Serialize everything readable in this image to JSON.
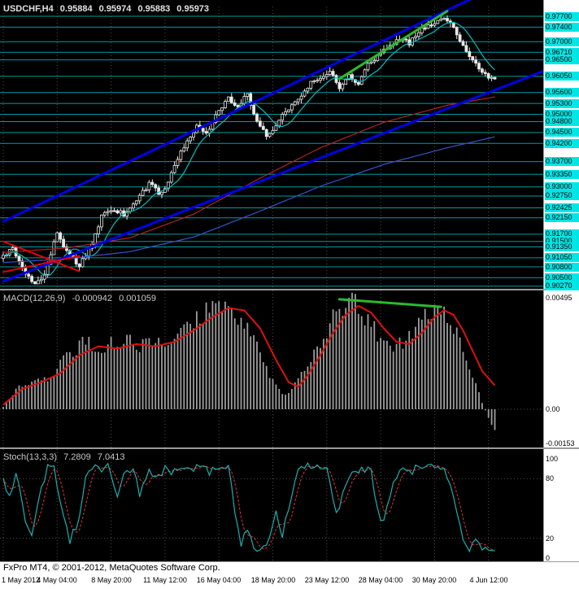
{
  "window": {
    "symbol_period": "USDCHF,H4"
  },
  "colors": {
    "background": "#000000",
    "scale_bg": "#ffffff",
    "level_line": "#009c9c",
    "level_label_bg": "#00e6e6",
    "grid": "#4d4d4d",
    "candle": "#e8e8e8",
    "separator": "#9a9a9a",
    "text_on_black": "#c8c8c8",
    "histogram": "#9e9e9e",
    "macd_signal": "#dd1111",
    "trend_blue": "#0000e6",
    "trend_green": "#2eb82e",
    "trend_red": "#e60000"
  },
  "footer": {
    "copyright": "FxPro MT4, © 2001-2012, MetaQuotes Software Corp."
  },
  "chart_data": [
    {
      "panel": "main",
      "type": "candlestick",
      "title": "USDCHF,H4",
      "ohlc_display": {
        "open": "0.95884",
        "high": "0.95974",
        "low": "0.95883",
        "close": "0.95973"
      },
      "bars_total": 156,
      "y_range": [
        0.9024,
        0.9797
      ],
      "grid": "dotted-vertical",
      "levels": [
        0.977,
        0.974,
        0.97,
        0.9671,
        0.965,
        0.9605,
        0.956,
        0.953,
        0.95,
        0.948,
        0.945,
        0.942,
        0.937,
        0.9335,
        0.93,
        0.9275,
        0.92425,
        0.9215,
        0.917,
        0.915,
        0.9135,
        0.9105,
        0.908,
        0.905,
        0.9027
      ],
      "x_tick_labels": [
        "1 May 2012",
        "4 May 04:00",
        "8 May 20:00",
        "11 May 12:00",
        "16 May 04:00",
        "18 May 20:00",
        "23 May 12:00",
        "28 May 04:00",
        "30 May 20:00",
        "4 Jun 12:00"
      ],
      "x_tick_bars": [
        0,
        17,
        34,
        51,
        68,
        85,
        102,
        119,
        136,
        153
      ],
      "close_keypoints": [
        [
          0,
          0.9108
        ],
        [
          3,
          0.9135
        ],
        [
          6,
          0.9075
        ],
        [
          10,
          0.9035
        ],
        [
          13,
          0.906
        ],
        [
          17,
          0.9172
        ],
        [
          20,
          0.912
        ],
        [
          24,
          0.9085
        ],
        [
          28,
          0.914
        ],
        [
          31,
          0.922
        ],
        [
          34,
          0.924
        ],
        [
          38,
          0.9225
        ],
        [
          42,
          0.926
        ],
        [
          46,
          0.931
        ],
        [
          49,
          0.9285
        ],
        [
          51,
          0.9295
        ],
        [
          55,
          0.938
        ],
        [
          58,
          0.943
        ],
        [
          61,
          0.9465
        ],
        [
          64,
          0.9445
        ],
        [
          67,
          0.9495
        ],
        [
          68,
          0.9505
        ],
        [
          71,
          0.9545
        ],
        [
          74,
          0.952
        ],
        [
          77,
          0.9555
        ],
        [
          80,
          0.948
        ],
        [
          83,
          0.944
        ],
        [
          85,
          0.9455
        ],
        [
          88,
          0.95
        ],
        [
          91,
          0.9525
        ],
        [
          94,
          0.955
        ],
        [
          97,
          0.9585
        ],
        [
          100,
          0.9595
        ],
        [
          103,
          0.9615
        ],
        [
          106,
          0.9575
        ],
        [
          109,
          0.9605
        ],
        [
          112,
          0.958
        ],
        [
          115,
          0.9635
        ],
        [
          119,
          0.9665
        ],
        [
          122,
          0.969
        ],
        [
          125,
          0.971
        ],
        [
          128,
          0.9695
        ],
        [
          131,
          0.9725
        ],
        [
          134,
          0.9745
        ],
        [
          137,
          0.976
        ],
        [
          139,
          0.977
        ],
        [
          141,
          0.975
        ],
        [
          143,
          0.972
        ],
        [
          145,
          0.969
        ],
        [
          147,
          0.9655
        ],
        [
          149,
          0.964
        ],
        [
          151,
          0.9615
        ],
        [
          153,
          0.9598
        ],
        [
          155,
          0.9597
        ]
      ],
      "moving_averages": [
        {
          "name": "fast",
          "color": "#00bfbf",
          "type": "sma",
          "window": 9
        },
        {
          "name": "medium",
          "color": "#b22222",
          "keypoints": [
            [
              0,
              0.912
            ],
            [
              20,
              0.9132
            ],
            [
              40,
              0.916
            ],
            [
              60,
              0.9225
            ],
            [
              80,
              0.932
            ],
            [
              100,
              0.9408
            ],
            [
              120,
              0.9478
            ],
            [
              140,
              0.9525
            ],
            [
              155,
              0.9548
            ]
          ]
        },
        {
          "name": "slow",
          "color": "#3355cc",
          "keypoints": [
            [
              0,
              0.9092
            ],
            [
              20,
              0.9102
            ],
            [
              40,
              0.9122
            ],
            [
              60,
              0.9162
            ],
            [
              80,
              0.923
            ],
            [
              100,
              0.9302
            ],
            [
              120,
              0.9362
            ],
            [
              140,
              0.9408
            ],
            [
              155,
              0.9438
            ]
          ]
        }
      ],
      "trendlines": [
        {
          "name": "channel-upper",
          "color": "#0000e6",
          "width": 3,
          "from": [
            0,
            0.9205
          ],
          "to": [
            148,
            0.982
          ]
        },
        {
          "name": "channel-lower",
          "color": "#0000e6",
          "width": 3,
          "from": [
            0,
            0.904
          ],
          "to": [
            170,
            0.9618
          ]
        },
        {
          "name": "acceleration-line",
          "color": "#2eb82e",
          "width": 3,
          "from": [
            106,
            0.9598
          ],
          "to": [
            140,
            0.9784
          ]
        },
        {
          "name": "wedge-a",
          "color": "#e60000",
          "width": 2,
          "from": [
            0,
            0.915
          ],
          "to": [
            24,
            0.9068
          ]
        },
        {
          "name": "wedge-b",
          "color": "#e60000",
          "width": 2,
          "from": [
            0,
            0.9066
          ],
          "to": [
            24,
            0.911
          ]
        }
      ]
    },
    {
      "panel": "macd",
      "type": "histogram+line",
      "label": "MACD(12,26,9)",
      "value_main": "-0.000942",
      "value_signal": "0.001059",
      "y_range": [
        -0.0017,
        0.00525
      ],
      "y_ticks": [
        {
          "label": "0.00495",
          "value": 0.00495
        },
        {
          "label": "0.00",
          "value": 0
        },
        {
          "label": "-0.00153",
          "value": -0.00153
        }
      ],
      "histogram_keypoints": [
        [
          0,
          0.0001
        ],
        [
          5,
          0.001
        ],
        [
          10,
          0.0013
        ],
        [
          15,
          0.0014
        ],
        [
          20,
          0.0024
        ],
        [
          26,
          0.003
        ],
        [
          32,
          0.0028
        ],
        [
          38,
          0.0031
        ],
        [
          44,
          0.0028
        ],
        [
          50,
          0.0029
        ],
        [
          56,
          0.0034
        ],
        [
          62,
          0.0042
        ],
        [
          67,
          0.0048
        ],
        [
          71,
          0.0047
        ],
        [
          75,
          0.004
        ],
        [
          80,
          0.0028
        ],
        [
          85,
          0.0012
        ],
        [
          89,
          0.0006
        ],
        [
          93,
          0.0013
        ],
        [
          97,
          0.0022
        ],
        [
          101,
          0.0032
        ],
        [
          105,
          0.0043
        ],
        [
          108,
          0.0049
        ],
        [
          111,
          0.0047
        ],
        [
          115,
          0.0039
        ],
        [
          119,
          0.0031
        ],
        [
          123,
          0.0027
        ],
        [
          127,
          0.003
        ],
        [
          131,
          0.0038
        ],
        [
          134,
          0.0044
        ],
        [
          137,
          0.0048
        ],
        [
          140,
          0.0043
        ],
        [
          143,
          0.0034
        ],
        [
          146,
          0.0023
        ],
        [
          149,
          0.0011
        ],
        [
          151,
          0.0003
        ],
        [
          153,
          -0.0004
        ],
        [
          155,
          -0.00094
        ]
      ],
      "signal_keypoints": [
        [
          0,
          0.0002
        ],
        [
          6,
          0.0009
        ],
        [
          12,
          0.0012
        ],
        [
          18,
          0.0016
        ],
        [
          24,
          0.0024
        ],
        [
          30,
          0.0028
        ],
        [
          36,
          0.0027
        ],
        [
          42,
          0.0029
        ],
        [
          48,
          0.0028
        ],
        [
          54,
          0.003
        ],
        [
          60,
          0.0035
        ],
        [
          66,
          0.0041
        ],
        [
          71,
          0.0045
        ],
        [
          76,
          0.0044
        ],
        [
          81,
          0.0036
        ],
        [
          86,
          0.0022
        ],
        [
          90,
          0.0012
        ],
        [
          93,
          0.001
        ],
        [
          96,
          0.0015
        ],
        [
          100,
          0.0024
        ],
        [
          104,
          0.0034
        ],
        [
          108,
          0.0042
        ],
        [
          112,
          0.0046
        ],
        [
          116,
          0.0043
        ],
        [
          120,
          0.0036
        ],
        [
          124,
          0.003
        ],
        [
          128,
          0.0029
        ],
        [
          132,
          0.0034
        ],
        [
          136,
          0.0041
        ],
        [
          139,
          0.0044
        ],
        [
          142,
          0.0042
        ],
        [
          145,
          0.0035
        ],
        [
          148,
          0.0026
        ],
        [
          151,
          0.0017
        ],
        [
          155,
          0.00106
        ]
      ],
      "trendline": {
        "name": "divergence-line",
        "color": "#2eb82e",
        "width": 3,
        "from": [
          106,
          0.00489
        ],
        "to": [
          138,
          0.00456
        ]
      }
    },
    {
      "panel": "stochastic",
      "type": "line",
      "label": "Stoch(13,3,3)",
      "value_main": "7.2809",
      "value_signal": "7.0413",
      "y_range": [
        0,
        100
      ],
      "level_lines": [
        80,
        20
      ],
      "y_ticks": [
        {
          "label": "100",
          "value": 100
        },
        {
          "label": "80",
          "value": 80
        },
        {
          "label": "20",
          "value": 20
        },
        {
          "label": "0",
          "value": 0
        }
      ],
      "colors": {
        "main": "#1fafaf",
        "signal": "#e63232"
      },
      "k_keypoints": [
        [
          0,
          78
        ],
        [
          2,
          60
        ],
        [
          4,
          88
        ],
        [
          7,
          40
        ],
        [
          9,
          22
        ],
        [
          12,
          70
        ],
        [
          14,
          92
        ],
        [
          16,
          95
        ],
        [
          18,
          55
        ],
        [
          21,
          18
        ],
        [
          24,
          40
        ],
        [
          26,
          82
        ],
        [
          28,
          92
        ],
        [
          31,
          88
        ],
        [
          33,
          94
        ],
        [
          36,
          62
        ],
        [
          38,
          86
        ],
        [
          41,
          90
        ],
        [
          43,
          65
        ],
        [
          46,
          88
        ],
        [
          48,
          80
        ],
        [
          51,
          90
        ],
        [
          53,
          86
        ],
        [
          56,
          93
        ],
        [
          59,
          88
        ],
        [
          62,
          92
        ],
        [
          65,
          87
        ],
        [
          68,
          92
        ],
        [
          71,
          94
        ],
        [
          73,
          50
        ],
        [
          75,
          15
        ],
        [
          77,
          28
        ],
        [
          80,
          6
        ],
        [
          83,
          12
        ],
        [
          86,
          48
        ],
        [
          88,
          24
        ],
        [
          91,
          65
        ],
        [
          93,
          90
        ],
        [
          96,
          92
        ],
        [
          99,
          94
        ],
        [
          102,
          90
        ],
        [
          105,
          45
        ],
        [
          107,
          62
        ],
        [
          110,
          90
        ],
        [
          113,
          88
        ],
        [
          116,
          90
        ],
        [
          118,
          48
        ],
        [
          120,
          35
        ],
        [
          123,
          75
        ],
        [
          126,
          90
        ],
        [
          128,
          86
        ],
        [
          131,
          92
        ],
        [
          134,
          94
        ],
        [
          137,
          90
        ],
        [
          139,
          92
        ],
        [
          141,
          75
        ],
        [
          143,
          45
        ],
        [
          145,
          20
        ],
        [
          147,
          10
        ],
        [
          149,
          16
        ],
        [
          151,
          9
        ],
        [
          153,
          8
        ],
        [
          155,
          7.28
        ]
      ]
    }
  ]
}
